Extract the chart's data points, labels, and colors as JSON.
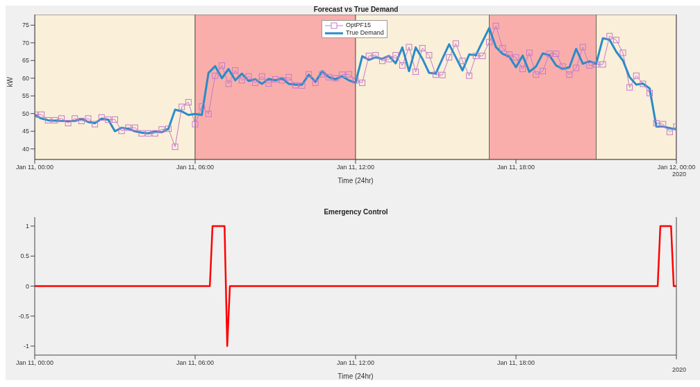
{
  "chart_data": [
    {
      "type": "line",
      "title": "Forecast vs True Demand",
      "xlabel": "Time (24hr)",
      "ylabel": "kW",
      "legend": "top",
      "annotations": [
        "2020"
      ],
      "xlim": [
        "2020-01-11T00:00",
        "2020-01-12T00:00"
      ],
      "xticks": [
        {
          "value": "2020-01-11T00:00",
          "label": "Jan 11, 00:00"
        },
        {
          "value": "2020-01-11T06:00",
          "label": "Jan 11, 06:00"
        },
        {
          "value": "2020-01-11T12:00",
          "label": "Jan 11, 12:00"
        },
        {
          "value": "2020-01-11T18:00",
          "label": "Jan 11, 18:00"
        },
        {
          "value": "2020-01-12T00:00",
          "label": "Jan 12, 00:00"
        }
      ],
      "ylim": [
        37,
        78
      ],
      "yticks": [
        40,
        45,
        50,
        55,
        60,
        65,
        70,
        75
      ],
      "bands": [
        {
          "axis": "x",
          "from": "2020-01-11T00:00",
          "to": "2020-01-11T06:00",
          "color": "#faefd9"
        },
        {
          "axis": "x",
          "from": "2020-01-11T06:00",
          "to": "2020-01-11T12:00",
          "color": "#f9aeab"
        },
        {
          "axis": "x",
          "from": "2020-01-11T12:00",
          "to": "2020-01-11T17:00",
          "color": "#faefd9"
        },
        {
          "axis": "x",
          "from": "2020-01-11T17:00",
          "to": "2020-01-11T21:00",
          "color": "#f9aeab"
        },
        {
          "axis": "x",
          "from": "2020-01-11T21:00",
          "to": "2020-01-12T00:00",
          "color": "#faefd9"
        }
      ],
      "x": [
        "2020-01-11T00:00",
        "2020-01-11T00:15",
        "2020-01-11T00:30",
        "2020-01-11T00:45",
        "2020-01-11T01:00",
        "2020-01-11T01:15",
        "2020-01-11T01:30",
        "2020-01-11T01:45",
        "2020-01-11T02:00",
        "2020-01-11T02:15",
        "2020-01-11T02:30",
        "2020-01-11T02:45",
        "2020-01-11T03:00",
        "2020-01-11T03:15",
        "2020-01-11T03:30",
        "2020-01-11T03:45",
        "2020-01-11T04:00",
        "2020-01-11T04:15",
        "2020-01-11T04:30",
        "2020-01-11T04:45",
        "2020-01-11T05:00",
        "2020-01-11T05:15",
        "2020-01-11T05:30",
        "2020-01-11T05:45",
        "2020-01-11T06:00",
        "2020-01-11T06:15",
        "2020-01-11T06:30",
        "2020-01-11T06:45",
        "2020-01-11T07:00",
        "2020-01-11T07:15",
        "2020-01-11T07:30",
        "2020-01-11T07:45",
        "2020-01-11T08:00",
        "2020-01-11T08:15",
        "2020-01-11T08:30",
        "2020-01-11T08:45",
        "2020-01-11T09:00",
        "2020-01-11T09:15",
        "2020-01-11T09:30",
        "2020-01-11T09:45",
        "2020-01-11T10:00",
        "2020-01-11T10:15",
        "2020-01-11T10:30",
        "2020-01-11T10:45",
        "2020-01-11T11:00",
        "2020-01-11T11:15",
        "2020-01-11T11:30",
        "2020-01-11T11:45",
        "2020-01-11T12:00",
        "2020-01-11T12:15",
        "2020-01-11T12:30",
        "2020-01-11T12:45",
        "2020-01-11T13:00",
        "2020-01-11T13:15",
        "2020-01-11T13:30",
        "2020-01-11T13:45",
        "2020-01-11T14:00",
        "2020-01-11T14:15",
        "2020-01-11T14:30",
        "2020-01-11T14:45",
        "2020-01-11T15:00",
        "2020-01-11T15:15",
        "2020-01-11T15:30",
        "2020-01-11T15:45",
        "2020-01-11T16:00",
        "2020-01-11T16:15",
        "2020-01-11T16:30",
        "2020-01-11T16:45",
        "2020-01-11T17:00",
        "2020-01-11T17:15",
        "2020-01-11T17:30",
        "2020-01-11T17:45",
        "2020-01-11T18:00",
        "2020-01-11T18:15",
        "2020-01-11T18:30",
        "2020-01-11T18:45",
        "2020-01-11T19:00",
        "2020-01-11T19:15",
        "2020-01-11T19:30",
        "2020-01-11T19:45",
        "2020-01-11T20:00",
        "2020-01-11T20:15",
        "2020-01-11T20:30",
        "2020-01-11T20:45",
        "2020-01-11T21:00",
        "2020-01-11T21:15",
        "2020-01-11T21:30",
        "2020-01-11T21:45",
        "2020-01-11T22:00",
        "2020-01-11T22:15",
        "2020-01-11T22:30",
        "2020-01-11T22:45",
        "2020-01-11T23:00",
        "2020-01-11T23:15",
        "2020-01-11T23:30",
        "2020-01-11T23:45",
        "2020-01-12T00:00"
      ],
      "series": [
        {
          "name": "OptPF15",
          "color": "#c27bc9",
          "marker": "square",
          "values": [
            49.7,
            49.7,
            48.1,
            48.1,
            48.6,
            47.3,
            48.6,
            47.9,
            48.6,
            47,
            48.9,
            48.3,
            48.3,
            45.1,
            46,
            46,
            44.4,
            44.4,
            44.4,
            45.5,
            45.7,
            40.6,
            51.9,
            53.2,
            47,
            52,
            49.9,
            60.7,
            63.6,
            58.4,
            62.2,
            59.4,
            60.5,
            58.7,
            60.5,
            58.5,
            59.7,
            59.4,
            60.3,
            58,
            57.9,
            61.1,
            58.7,
            61.1,
            60.3,
            60,
            61,
            61.1,
            59.4,
            58.7,
            66.3,
            66.5,
            64.9,
            65.4,
            66.5,
            63.6,
            68.8,
            61.8,
            68.5,
            66.5,
            61,
            60.9,
            65.9,
            69.8,
            64.9,
            60.7,
            66.3,
            66.3,
            70.2,
            74.8,
            68.5,
            66.7,
            65.9,
            62.6,
            67.2,
            61,
            62,
            66.9,
            66.9,
            63.3,
            61,
            62.9,
            68.8,
            63.6,
            63.9,
            63.9,
            71.9,
            70.8,
            67.2,
            57.4,
            60.7,
            58.4,
            55.8,
            47.3,
            47,
            44.8,
            46.3
          ]
        },
        {
          "name": "True Demand",
          "color": "#2a8bc8",
          "marker": "none",
          "values": [
            49.6,
            48.6,
            48.1,
            48,
            47.9,
            47.9,
            47.9,
            48.5,
            47.6,
            47.3,
            48.5,
            48.3,
            45,
            46,
            45.7,
            45,
            44.6,
            44.4,
            45,
            44.7,
            45.7,
            51.1,
            50.6,
            49.6,
            49.9,
            49.6,
            61.5,
            63.4,
            60,
            62.6,
            59.4,
            61.3,
            59.2,
            59.7,
            58.4,
            59.8,
            59.4,
            60,
            58.4,
            58.2,
            58.2,
            61,
            59,
            62,
            60.3,
            59.7,
            60.5,
            59.4,
            58.7,
            66.2,
            65.2,
            65.9,
            65.5,
            66.3,
            64.2,
            68.7,
            62,
            68.7,
            65.5,
            61.5,
            61.3,
            65.5,
            69.6,
            65.9,
            62.2,
            66.7,
            66.5,
            70.4,
            74.2,
            68.8,
            66.9,
            66.1,
            63.1,
            66.4,
            61.8,
            63.3,
            67,
            66.5,
            63.6,
            62.6,
            63.1,
            68.3,
            64.1,
            64.8,
            64.1,
            71.3,
            70.9,
            67.5,
            65,
            60.3,
            58.2,
            58.5,
            57.1,
            46.3,
            46.3,
            45.9,
            45.5
          ]
        }
      ]
    },
    {
      "type": "line",
      "title": "Emergency Control",
      "xlabel": "Time (24hr)",
      "annotations": [
        "2020"
      ],
      "xlim": [
        "2020-01-11T00:00",
        "2020-01-12T00:00"
      ],
      "xticks": [
        {
          "value": "2020-01-11T00:00",
          "label": "Jan 11, 00:00"
        },
        {
          "value": "2020-01-11T06:00",
          "label": "Jan 11, 06:00"
        },
        {
          "value": "2020-01-11T12:00",
          "label": "Jan 11, 12:00"
        },
        {
          "value": "2020-01-11T18:00",
          "label": "Jan 11, 18:00"
        },
        {
          "value": "2020-01-12T00:00",
          "label": null
        }
      ],
      "ylim": [
        -1.15,
        1.15
      ],
      "yticks": [
        -1,
        -0.5,
        0,
        0.5,
        1
      ],
      "x": [
        "2020-01-11T00:00",
        "2020-01-11T06:33",
        "2020-01-11T06:39",
        "2020-01-11T07:06",
        "2020-01-11T07:12",
        "2020-01-11T07:18",
        "2020-01-11T23:18",
        "2020-01-11T23:24",
        "2020-01-11T23:48",
        "2020-01-11T23:54",
        "2020-01-12T00:00"
      ],
      "series": [
        {
          "color": "#ff0000",
          "values": [
            0,
            0,
            1,
            1,
            -1,
            0,
            0,
            1,
            1,
            0,
            0
          ]
        }
      ]
    }
  ]
}
